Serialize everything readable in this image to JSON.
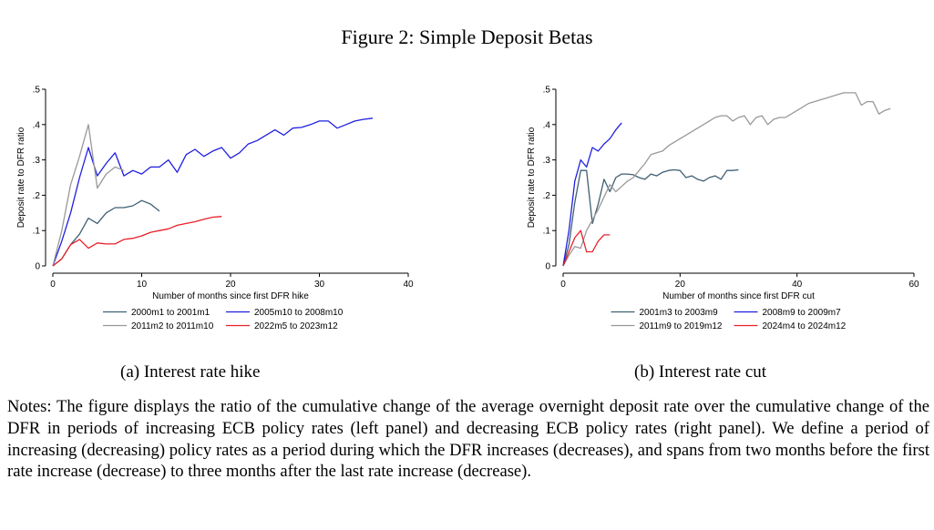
{
  "figure_title": "Figure 2: Simple Deposit Betas",
  "captions": [
    "(a) Interest rate hike",
    "(b) Interest rate cut"
  ],
  "notes": "Notes: The figure displays the ratio of the cumulative change of the average overnight deposit rate over the cumulative change of the DFR in periods of increasing ECB policy rates (left panel) and decreasing ECB policy rates (right panel). We define a period of increasing (decreasing) policy rates as a period during which the DFR increases (decreases), and spans from two months before the first rate increase (decrease) to three months after the last rate increase (decrease).",
  "chart_data": [
    {
      "type": "line",
      "xlabel": "Number of months since first DFR hike",
      "ylabel": "Deposit rate to DFR ratio",
      "xlim": [
        0,
        40
      ],
      "ylim": [
        0,
        0.5
      ],
      "xticks": [
        0,
        10,
        20,
        30,
        40
      ],
      "xtick_labels": [
        "0",
        "10",
        "20",
        "30",
        "40"
      ],
      "yticks": [
        0,
        0.1,
        0.2,
        0.3,
        0.4,
        0.5
      ],
      "ytick_labels": [
        "0",
        ".1",
        ".2",
        ".3",
        ".4",
        ".5"
      ],
      "grid": false,
      "legend_position": "bottom",
      "series": [
        {
          "name": "2000m1 to 2001m1",
          "color": "#3e5f73",
          "x": [
            0,
            1,
            2,
            3,
            4,
            5,
            6,
            7,
            8,
            9,
            10,
            11,
            12
          ],
          "y": [
            0,
            0.02,
            0.06,
            0.09,
            0.135,
            0.12,
            0.15,
            0.165,
            0.165,
            0.17,
            0.185,
            0.175,
            0.155
          ]
        },
        {
          "name": "2005m10 to 2008m10",
          "color": "#1f1fe0",
          "x": [
            0,
            1,
            2,
            3,
            4,
            5,
            6,
            7,
            8,
            9,
            10,
            11,
            12,
            13,
            14,
            15,
            16,
            17,
            18,
            19,
            20,
            21,
            22,
            23,
            24,
            25,
            26,
            27,
            28,
            29,
            30,
            31,
            32,
            33,
            34,
            35,
            36
          ],
          "y": [
            0,
            0.07,
            0.15,
            0.25,
            0.335,
            0.255,
            0.29,
            0.32,
            0.255,
            0.27,
            0.26,
            0.28,
            0.28,
            0.3,
            0.265,
            0.315,
            0.33,
            0.31,
            0.325,
            0.335,
            0.305,
            0.32,
            0.345,
            0.355,
            0.37,
            0.385,
            0.37,
            0.39,
            0.392,
            0.4,
            0.41,
            0.41,
            0.39,
            0.4,
            0.41,
            0.415,
            0.418
          ]
        },
        {
          "name": "2011m2 to 2011m10",
          "color": "#999999",
          "x": [
            0,
            1,
            2,
            3,
            4,
            5,
            6,
            7,
            8
          ],
          "y": [
            0,
            0.1,
            0.23,
            0.31,
            0.4,
            0.22,
            0.26,
            0.28,
            0.27
          ]
        },
        {
          "name": "2022m5 to 2023m12",
          "color": "#e8202a",
          "x": [
            0,
            1,
            2,
            3,
            4,
            5,
            6,
            7,
            8,
            9,
            10,
            11,
            12,
            13,
            14,
            15,
            16,
            17,
            18,
            19
          ],
          "y": [
            0,
            0.02,
            0.06,
            0.075,
            0.05,
            0.065,
            0.062,
            0.062,
            0.075,
            0.078,
            0.085,
            0.095,
            0.1,
            0.105,
            0.115,
            0.12,
            0.125,
            0.132,
            0.138,
            0.14
          ]
        }
      ]
    },
    {
      "type": "line",
      "xlabel": "Number of months since first DFR cut",
      "ylabel": "Deposit rate to DFR ratio",
      "xlim": [
        0,
        60
      ],
      "ylim": [
        0,
        0.5
      ],
      "xticks": [
        0,
        20,
        40,
        60
      ],
      "xtick_labels": [
        "0",
        "20",
        "40",
        "60"
      ],
      "yticks": [
        0,
        0.1,
        0.2,
        0.3,
        0.4,
        0.5
      ],
      "ytick_labels": [
        "0",
        ".1",
        ".2",
        ".3",
        ".4",
        ".5"
      ],
      "grid": false,
      "legend_position": "bottom",
      "series": [
        {
          "name": "2001m3 to 2003m9",
          "color": "#3e5f73",
          "x": [
            0,
            1,
            2,
            3,
            4,
            5,
            6,
            7,
            8,
            9,
            10,
            11,
            12,
            13,
            14,
            15,
            16,
            17,
            18,
            19,
            20,
            21,
            22,
            23,
            24,
            25,
            26,
            27,
            28,
            29,
            30
          ],
          "y": [
            0,
            0.06,
            0.18,
            0.27,
            0.27,
            0.12,
            0.175,
            0.245,
            0.21,
            0.25,
            0.26,
            0.26,
            0.258,
            0.25,
            0.245,
            0.26,
            0.255,
            0.265,
            0.27,
            0.272,
            0.27,
            0.25,
            0.255,
            0.245,
            0.24,
            0.25,
            0.255,
            0.245,
            0.27,
            0.27,
            0.272
          ]
        },
        {
          "name": "2008m9 to 2009m7",
          "color": "#1f1fe0",
          "x": [
            0,
            1,
            2,
            3,
            4,
            5,
            6,
            7,
            8,
            9,
            10
          ],
          "y": [
            0,
            0.1,
            0.24,
            0.3,
            0.28,
            0.335,
            0.325,
            0.345,
            0.36,
            0.385,
            0.405
          ]
        },
        {
          "name": "2011m9 to 2019m12",
          "color": "#999999",
          "x": [
            0,
            1,
            2,
            3,
            4,
            5,
            6,
            7,
            8,
            9,
            10,
            11,
            12,
            13,
            14,
            15,
            16,
            17,
            18,
            19,
            20,
            21,
            22,
            23,
            24,
            25,
            26,
            27,
            28,
            29,
            30,
            31,
            32,
            33,
            34,
            35,
            36,
            37,
            38,
            39,
            40,
            41,
            42,
            43,
            44,
            45,
            46,
            47,
            48,
            49,
            50,
            51,
            52,
            53,
            54,
            55,
            56
          ],
          "y": [
            0,
            0.03,
            0.055,
            0.05,
            0.1,
            0.13,
            0.16,
            0.195,
            0.23,
            0.21,
            0.225,
            0.24,
            0.25,
            0.27,
            0.29,
            0.315,
            0.32,
            0.325,
            0.34,
            0.35,
            0.36,
            0.37,
            0.38,
            0.39,
            0.4,
            0.41,
            0.42,
            0.425,
            0.425,
            0.41,
            0.42,
            0.425,
            0.4,
            0.42,
            0.425,
            0.4,
            0.415,
            0.42,
            0.42,
            0.43,
            0.44,
            0.45,
            0.46,
            0.465,
            0.47,
            0.475,
            0.48,
            0.485,
            0.49,
            0.49,
            0.49,
            0.455,
            0.465,
            0.465,
            0.43,
            0.44,
            0.445
          ]
        },
        {
          "name": "2024m4 to 2024m12",
          "color": "#e8202a",
          "x": [
            0,
            1,
            2,
            3,
            4,
            5,
            6,
            7,
            8
          ],
          "y": [
            0,
            0.04,
            0.08,
            0.1,
            0.04,
            0.04,
            0.07,
            0.088,
            0.088
          ]
        }
      ]
    }
  ]
}
